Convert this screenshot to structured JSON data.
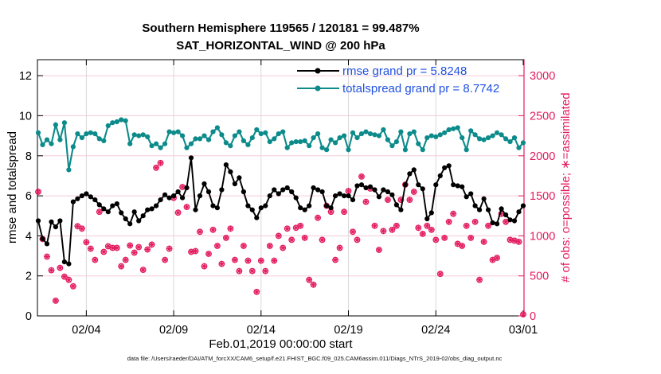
{
  "title": {
    "line1": "Southern Hemisphere 119565 / 120181 = 99.487%",
    "line2": "SAT_HORIZONTAL_WIND @ 200 hPa"
  },
  "legend": {
    "entries": [
      {
        "label": "rmse grand pr = 5.8248",
        "color": "#000000"
      },
      {
        "label": "totalspread grand pr = 8.7742",
        "color": "#0d8b8b"
      }
    ],
    "text_color": "#2050df"
  },
  "footer": {
    "data_file": "data file: /Users/raeder/DAI/ATM_forcXX/CAM6_setup/f.e21.FHIST_BGC.f09_025.CAM6assim.011/Diags_NTrS_2019-02/obs_diag_output.nc"
  },
  "colors": {
    "black": "#000000",
    "teal": "#0d8b8b",
    "pink": "#e31b60",
    "grid_h": "#f5ccd5",
    "grid_v": "#d9d9d9",
    "legend_text": "#2050df",
    "background": "#ffffff"
  },
  "chart_data": {
    "type": "line",
    "title": "Southern Hemisphere 119565 / 120181 = 99.487%  SAT_HORIZONTAL_WIND @ 200 hPa",
    "xlabel": "Feb.01,2019 00:00:00 start",
    "ylabel_left": "rmse and totalspread",
    "ylabel_right": "# of obs: o=possible; ∗=assimilated",
    "x_tick_labels": [
      "02/04",
      "02/09",
      "02/14",
      "02/19",
      "02/24",
      "03/01"
    ],
    "x_tick_days": [
      3,
      8,
      13,
      18,
      23,
      28
    ],
    "ylim_left": [
      0,
      12.8
    ],
    "yticks_left": [
      0,
      2,
      4,
      6,
      8,
      10,
      12
    ],
    "ylim_right": [
      0,
      3200
    ],
    "yticks_right": [
      0,
      500,
      1000,
      1500,
      2000,
      2500,
      3000
    ],
    "right_per_left_unit": 250,
    "day_start": 0.25,
    "day_step": 0.25,
    "grid": true,
    "legend_position": "top-center-right",
    "series": [
      {
        "name": "rmse grand pr = 5.8248",
        "color": "#000000",
        "axis": "left",
        "values": [
          4.75,
          3.85,
          3.6,
          4.7,
          4.45,
          4.75,
          2.7,
          2.6,
          5.7,
          5.85,
          6.0,
          6.1,
          5.95,
          5.8,
          5.55,
          5.35,
          5.2,
          5.5,
          5.6,
          5.15,
          4.85,
          4.6,
          5.2,
          4.75,
          5.0,
          5.3,
          5.35,
          5.5,
          5.8,
          6.05,
          5.9,
          6.0,
          6.2,
          5.9,
          6.4,
          7.9,
          5.3,
          6.0,
          6.6,
          6.2,
          5.5,
          5.4,
          6.3,
          7.55,
          7.2,
          6.6,
          6.9,
          6.2,
          5.5,
          5.3,
          4.9,
          5.4,
          5.5,
          6.0,
          6.3,
          6.1,
          6.3,
          6.4,
          6.2,
          5.9,
          5.4,
          5.3,
          5.5,
          6.4,
          6.3,
          6.2,
          5.5,
          5.4,
          6.0,
          6.1,
          6.0,
          6.0,
          5.8,
          6.5,
          6.55,
          6.4,
          6.45,
          6.3,
          5.95,
          6.3,
          6.2,
          6.05,
          5.55,
          5.3,
          6.55,
          7.1,
          7.3,
          6.55,
          6.35,
          4.85,
          5.15,
          6.55,
          7.0,
          7.4,
          7.5,
          6.55,
          6.5,
          6.45,
          5.95,
          6.1,
          5.5,
          5.3,
          5.85,
          5.3,
          4.65,
          4.6,
          5.35,
          5.05,
          4.8,
          4.75,
          5.2,
          5.5
        ]
      },
      {
        "name": "totalspread grand pr = 8.7742",
        "color": "#0d8b8b",
        "axis": "left",
        "values": [
          9.15,
          8.55,
          8.8,
          8.6,
          9.55,
          8.8,
          9.65,
          7.3,
          8.45,
          9.1,
          8.9,
          9.1,
          9.15,
          9.1,
          8.85,
          8.75,
          9.5,
          9.65,
          9.7,
          9.8,
          9.75,
          8.6,
          9.05,
          9.0,
          9.05,
          8.95,
          8.5,
          8.6,
          8.4,
          8.6,
          9.2,
          9.15,
          9.2,
          9.0,
          8.4,
          8.6,
          8.85,
          8.85,
          9.0,
          8.8,
          9.2,
          9.4,
          9.05,
          8.65,
          8.5,
          9.0,
          9.2,
          8.75,
          8.55,
          8.9,
          9.3,
          9.1,
          9.15,
          8.7,
          8.85,
          9.1,
          9.2,
          8.4,
          8.65,
          8.7,
          8.7,
          8.75,
          8.5,
          8.9,
          9.1,
          8.4,
          8.3,
          8.8,
          8.65,
          8.9,
          9.0,
          8.3,
          9.15,
          8.9,
          9.1,
          9.2,
          9.1,
          9.05,
          9.0,
          9.3,
          8.8,
          8.5,
          8.7,
          9.2,
          8.3,
          9.1,
          9.2,
          8.6,
          8.3,
          8.9,
          9.0,
          8.95,
          9.05,
          9.15,
          9.3,
          9.35,
          9.4,
          8.9,
          8.3,
          9.25,
          9.05,
          8.85,
          8.8,
          8.9,
          9.0,
          9.15,
          9.05,
          8.85,
          8.7,
          8.9,
          8.4,
          8.65
        ]
      }
    ],
    "obs": {
      "axis": "right",
      "possible_marker": "o",
      "assimilated_marker": "*",
      "possible": [
        1550,
        960,
        740,
        570,
        190,
        600,
        490,
        450,
        370,
        1120,
        1090,
        920,
        840,
        700,
        1300,
        800,
        870,
        850,
        850,
        620,
        700,
        880,
        790,
        860,
        575,
        830,
        890,
        1850,
        1910,
        700,
        840,
        1475,
        1290,
        1610,
        1360,
        800,
        810,
        1050,
        620,
        775,
        1075,
        875,
        650,
        975,
        1090,
        700,
        560,
        875,
        690,
        560,
        300,
        690,
        560,
        875,
        690,
        1000,
        850,
        1090,
        950,
        1100,
        1125,
        975,
        450,
        390,
        1225,
        950,
        1375,
        1300,
        700,
        850,
        1300,
        1560,
        1050,
        950,
        1740,
        1425,
        1590,
        1125,
        825,
        1060,
        1450,
        1075,
        1125,
        1450,
        1640,
        1450,
        1550,
        1100,
        1025,
        1125,
        1075,
        950,
        525,
        975,
        1175,
        1275,
        900,
        875,
        1125,
        975,
        1175,
        450,
        925,
        1125,
        700,
        725,
        1275,
        1175,
        950,
        940,
        925,
        20
      ],
      "assimilated": [
        1550,
        960,
        740,
        570,
        190,
        600,
        490,
        450,
        370,
        1120,
        1090,
        920,
        840,
        700,
        1300,
        800,
        870,
        850,
        850,
        620,
        700,
        880,
        790,
        860,
        575,
        830,
        890,
        1850,
        1910,
        700,
        840,
        1475,
        1290,
        1610,
        1360,
        800,
        810,
        1050,
        620,
        775,
        1075,
        875,
        650,
        975,
        1090,
        700,
        560,
        875,
        690,
        560,
        300,
        690,
        560,
        875,
        690,
        1000,
        850,
        1090,
        950,
        1100,
        1125,
        975,
        450,
        390,
        1225,
        950,
        1375,
        1300,
        700,
        850,
        1300,
        1560,
        1050,
        950,
        1740,
        1425,
        1590,
        1125,
        825,
        1060,
        1450,
        1075,
        1125,
        1450,
        1640,
        1450,
        1550,
        1100,
        1025,
        1125,
        1075,
        950,
        525,
        975,
        1175,
        1275,
        900,
        875,
        1125,
        975,
        1175,
        450,
        925,
        1125,
        700,
        725,
        1275,
        1175,
        950,
        940,
        925,
        20
      ]
    }
  }
}
